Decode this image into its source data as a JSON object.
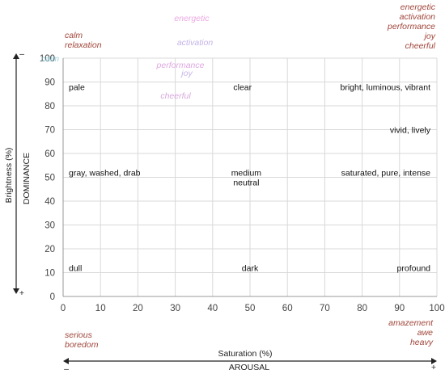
{
  "chart_data": {
    "type": "scatter",
    "xlabel": "Saturation (%)",
    "ylabel": "Brightness (%)",
    "xlim": [
      0,
      100
    ],
    "ylim": [
      0,
      100
    ],
    "x_ticks": [
      "0",
      "10",
      "20",
      "30",
      "40",
      "50",
      "60",
      "70",
      "80",
      "90",
      "100"
    ],
    "y_ticks": [
      "0",
      "10",
      "20",
      "30",
      "40",
      "50",
      "60",
      "70",
      "80",
      "90",
      "100"
    ],
    "grid": true,
    "arousal_axis": {
      "label": "AROUSAL",
      "low": "–",
      "high": "+"
    },
    "dominance_axis": {
      "label": "DOMINANCE",
      "low": "+",
      "high": "–"
    },
    "labels": [
      {
        "text": "pale",
        "x": 4,
        "y": 88
      },
      {
        "text": "clear",
        "x": 48,
        "y": 88
      },
      {
        "text": "bright, luminous, vibrant",
        "x": 88,
        "y": 88
      },
      {
        "text": "vivid, lively",
        "x": 94,
        "y": 70
      },
      {
        "text": "gray, washed, drab",
        "x": 10,
        "y": 52
      },
      {
        "text": "medium",
        "x": 49,
        "y": 52
      },
      {
        "text": "neutral",
        "x": 49,
        "y": 48
      },
      {
        "text": "saturated, pure, intense",
        "x": 88,
        "y": 52
      },
      {
        "text": "dull",
        "x": 3,
        "y": 12
      },
      {
        "text": "dark",
        "x": 50,
        "y": 12
      },
      {
        "text": "profound",
        "x": 94,
        "y": 12
      }
    ],
    "emotions": {
      "top_left": [
        "calm",
        "relaxation"
      ],
      "top_right": [
        "energetic",
        "activation",
        "performance",
        "joy",
        "cheerful"
      ],
      "bottom_left": [
        "serious",
        "boredom"
      ],
      "bottom_right": [
        "amazement",
        "awe",
        "heavy"
      ]
    },
    "overlay_marks": [
      {
        "text": "energetic",
        "color": "#e48bd8"
      },
      {
        "text": "activation",
        "color": "#b19ae0"
      },
      {
        "text": "performance",
        "color": "#d38ad8"
      },
      {
        "text": "joy",
        "color": "#b19ae0"
      },
      {
        "text": "cheerful",
        "color": "#cc8ad4"
      },
      {
        "text": "calm",
        "color": "#7cc7d9"
      }
    ],
    "colors": {
      "emotion_text": "#a0453a",
      "grid": "#d9d9d9",
      "axis": "#999999"
    }
  }
}
